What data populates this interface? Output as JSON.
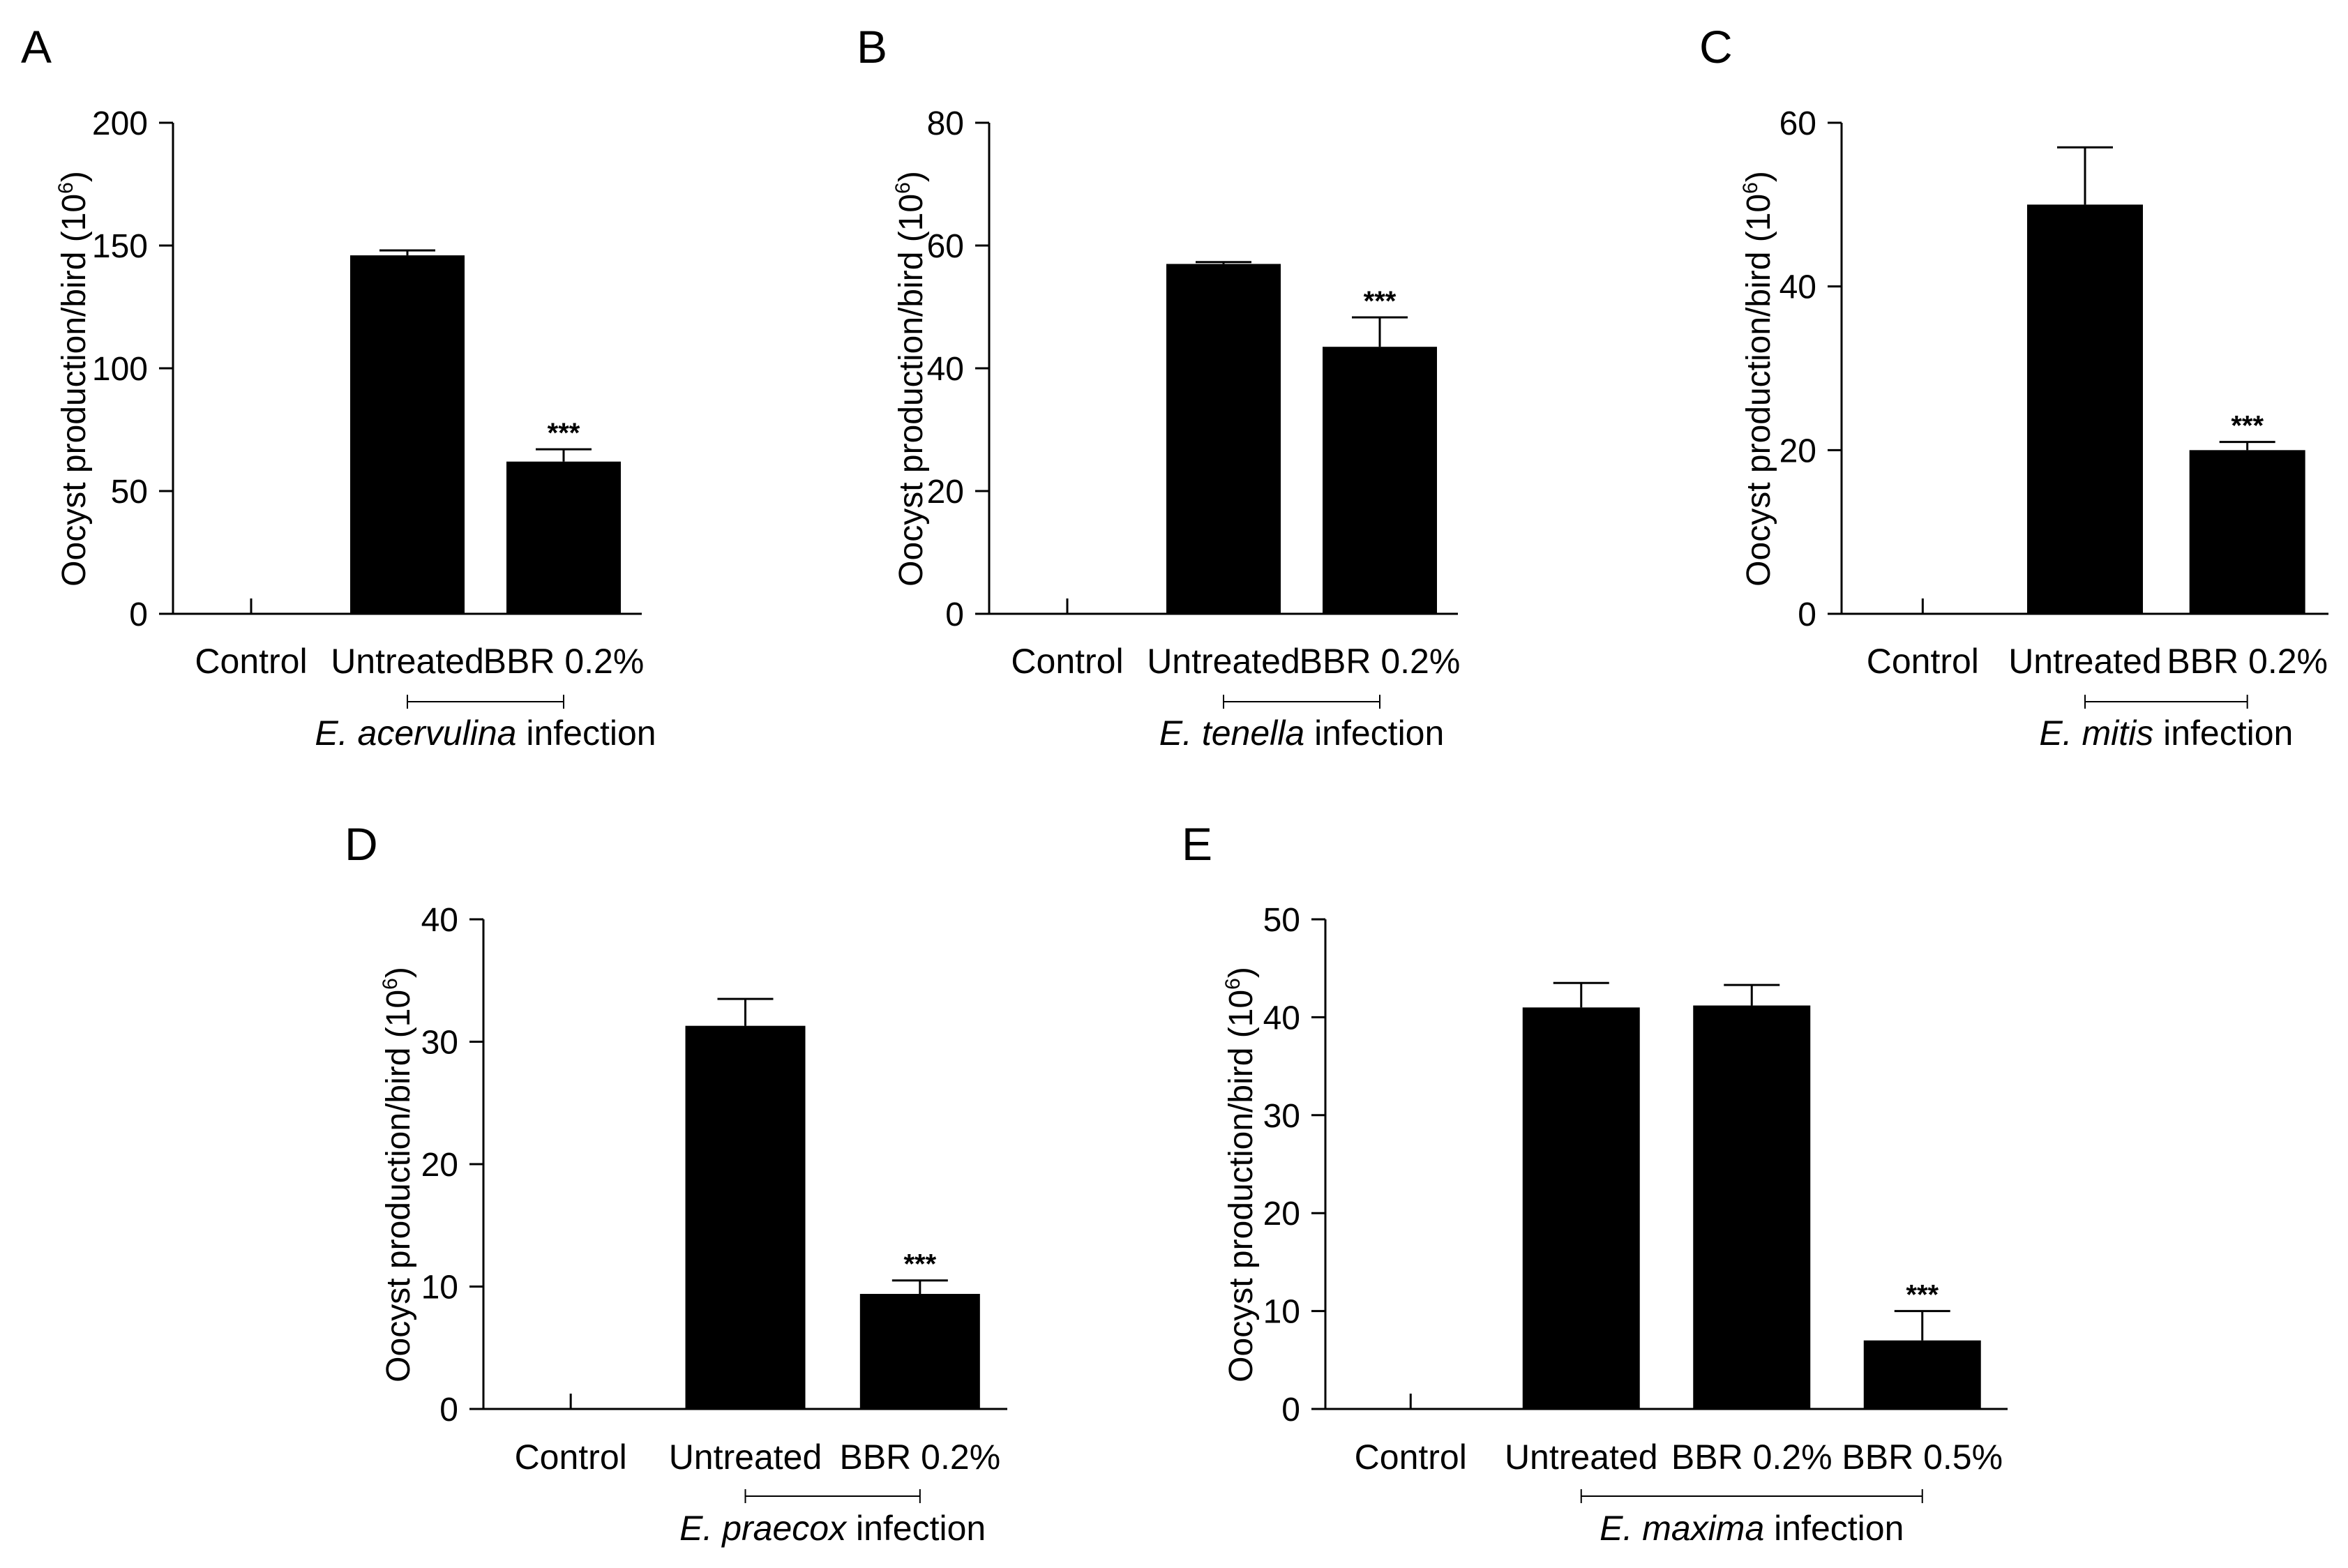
{
  "colors": {
    "bar": "#000000",
    "axis": "#000000",
    "background": "#ffffff"
  },
  "chart_data": [
    {
      "panel": "A",
      "type": "bar",
      "categories": [
        "Control",
        "Untreated",
        "BBR 0.2%"
      ],
      "values": [
        0,
        146,
        62
      ],
      "errors": [
        0,
        2,
        5
      ],
      "significance": [
        "",
        "",
        "***"
      ],
      "ylim": [
        0,
        200
      ],
      "yticks": [
        "0",
        "50",
        "100",
        "150",
        "200"
      ],
      "ylabel_main": "Oocyst production/bird (10",
      "ylabel_sup": "6",
      "ylabel_end": ")",
      "infection_species": "E. acervulina",
      "infection_word": " infection",
      "bracket_from": 1,
      "bracket_to": 2
    },
    {
      "panel": "B",
      "type": "bar",
      "categories": [
        "Control",
        "Untreated",
        "BBR 0.2%"
      ],
      "values": [
        0,
        57,
        43.5
      ],
      "errors": [
        0,
        0.3,
        4.8
      ],
      "significance": [
        "",
        "",
        "***"
      ],
      "ylim": [
        0,
        80
      ],
      "yticks": [
        "0",
        "20",
        "40",
        "60",
        "80"
      ],
      "ylabel_main": "Oocyst production/bird (10",
      "ylabel_sup": "6",
      "ylabel_end": ")",
      "infection_species": "E. tenella",
      "infection_word": " infection",
      "bracket_from": 1,
      "bracket_to": 2
    },
    {
      "panel": "C",
      "type": "bar",
      "categories": [
        "Control",
        "Untreated",
        "BBR 0.2%"
      ],
      "values": [
        0,
        50,
        20
      ],
      "errors": [
        0,
        7,
        1
      ],
      "significance": [
        "",
        "",
        "***"
      ],
      "ylim": [
        0,
        60
      ],
      "yticks": [
        "0",
        "20",
        "40",
        "60"
      ],
      "ylabel_main": "Oocyst production/bird (10",
      "ylabel_sup": "6",
      "ylabel_end": ")",
      "infection_species": "E. mitis",
      "infection_word": " infection",
      "bracket_from": 1,
      "bracket_to": 2
    },
    {
      "panel": "D",
      "type": "bar",
      "categories": [
        "Control",
        "Untreated",
        "BBR 0.2%"
      ],
      "values": [
        0,
        31.3,
        9.4
      ],
      "errors": [
        0,
        2.2,
        1.1
      ],
      "significance": [
        "",
        "",
        "***"
      ],
      "ylim": [
        0,
        40
      ],
      "yticks": [
        "0",
        "10",
        "20",
        "30",
        "40"
      ],
      "ylabel_main": "Oocyst production/bird (10",
      "ylabel_sup": "6",
      "ylabel_end": ")",
      "infection_species": "E. praecox",
      "infection_word": " infection",
      "bracket_from": 1,
      "bracket_to": 2
    },
    {
      "panel": "E",
      "type": "bar",
      "categories": [
        "Control",
        "Untreated",
        "BBR 0.2%",
        "BBR 0.5%"
      ],
      "values": [
        0,
        41,
        41.2,
        7
      ],
      "errors": [
        0,
        2.5,
        2.1,
        3
      ],
      "significance": [
        "",
        "",
        "",
        "***"
      ],
      "ylim": [
        0,
        50
      ],
      "yticks": [
        "0",
        "10",
        "20",
        "30",
        "40",
        "50"
      ],
      "ylabel_main": "Oocyst production/bird (10",
      "ylabel_sup": "6",
      "ylabel_end": ")",
      "infection_species": "E. maxima",
      "infection_word": " infection",
      "bracket_from": 1,
      "bracket_to": 3
    }
  ]
}
